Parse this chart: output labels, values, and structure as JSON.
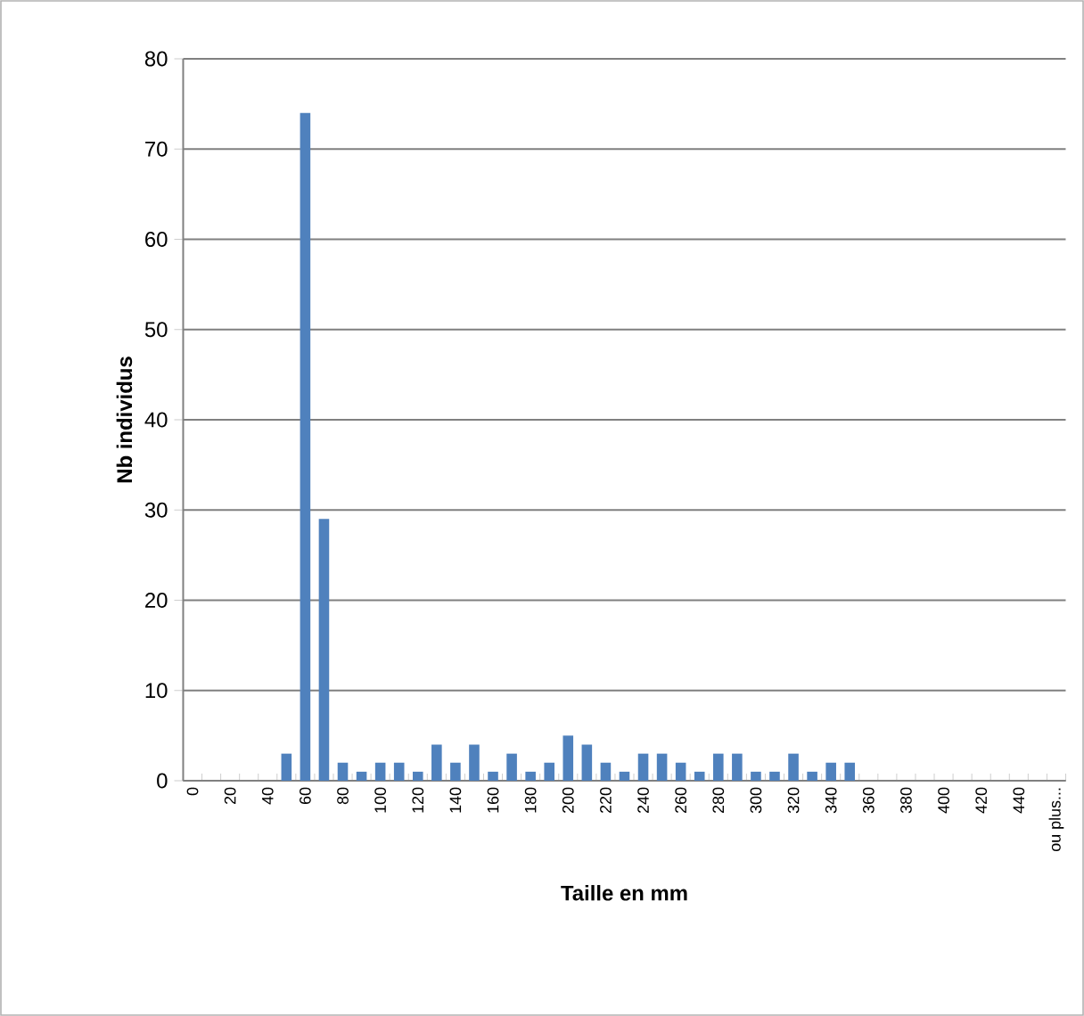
{
  "chart_data": {
    "type": "bar",
    "xlabel": "Taille en mm",
    "ylabel": "Nb individus",
    "categories": [
      "0",
      null,
      "20",
      null,
      "40",
      null,
      "60",
      null,
      "80",
      null,
      "100",
      null,
      "120",
      null,
      "140",
      null,
      "160",
      null,
      "180",
      null,
      "200",
      null,
      "220",
      null,
      "240",
      null,
      "260",
      null,
      "280",
      null,
      "300",
      null,
      "320",
      null,
      "340",
      null,
      "360",
      null,
      "380",
      null,
      "400",
      null,
      "420",
      null,
      "440",
      null,
      "ou plus..."
    ],
    "values": [
      0,
      0,
      0,
      0,
      0,
      3,
      74,
      29,
      2,
      1,
      2,
      2,
      1,
      4,
      2,
      4,
      1,
      3,
      1,
      2,
      5,
      4,
      2,
      1,
      3,
      3,
      2,
      1,
      3,
      3,
      1,
      1,
      3,
      1,
      2,
      2,
      0,
      0,
      0,
      0,
      0,
      0,
      0,
      0,
      0,
      0,
      0
    ],
    "color": "#4f81bd",
    "ylim": [
      0,
      80
    ],
    "yticks": [
      0,
      10,
      20,
      30,
      40,
      50,
      60,
      70,
      80
    ],
    "grid": "y"
  }
}
